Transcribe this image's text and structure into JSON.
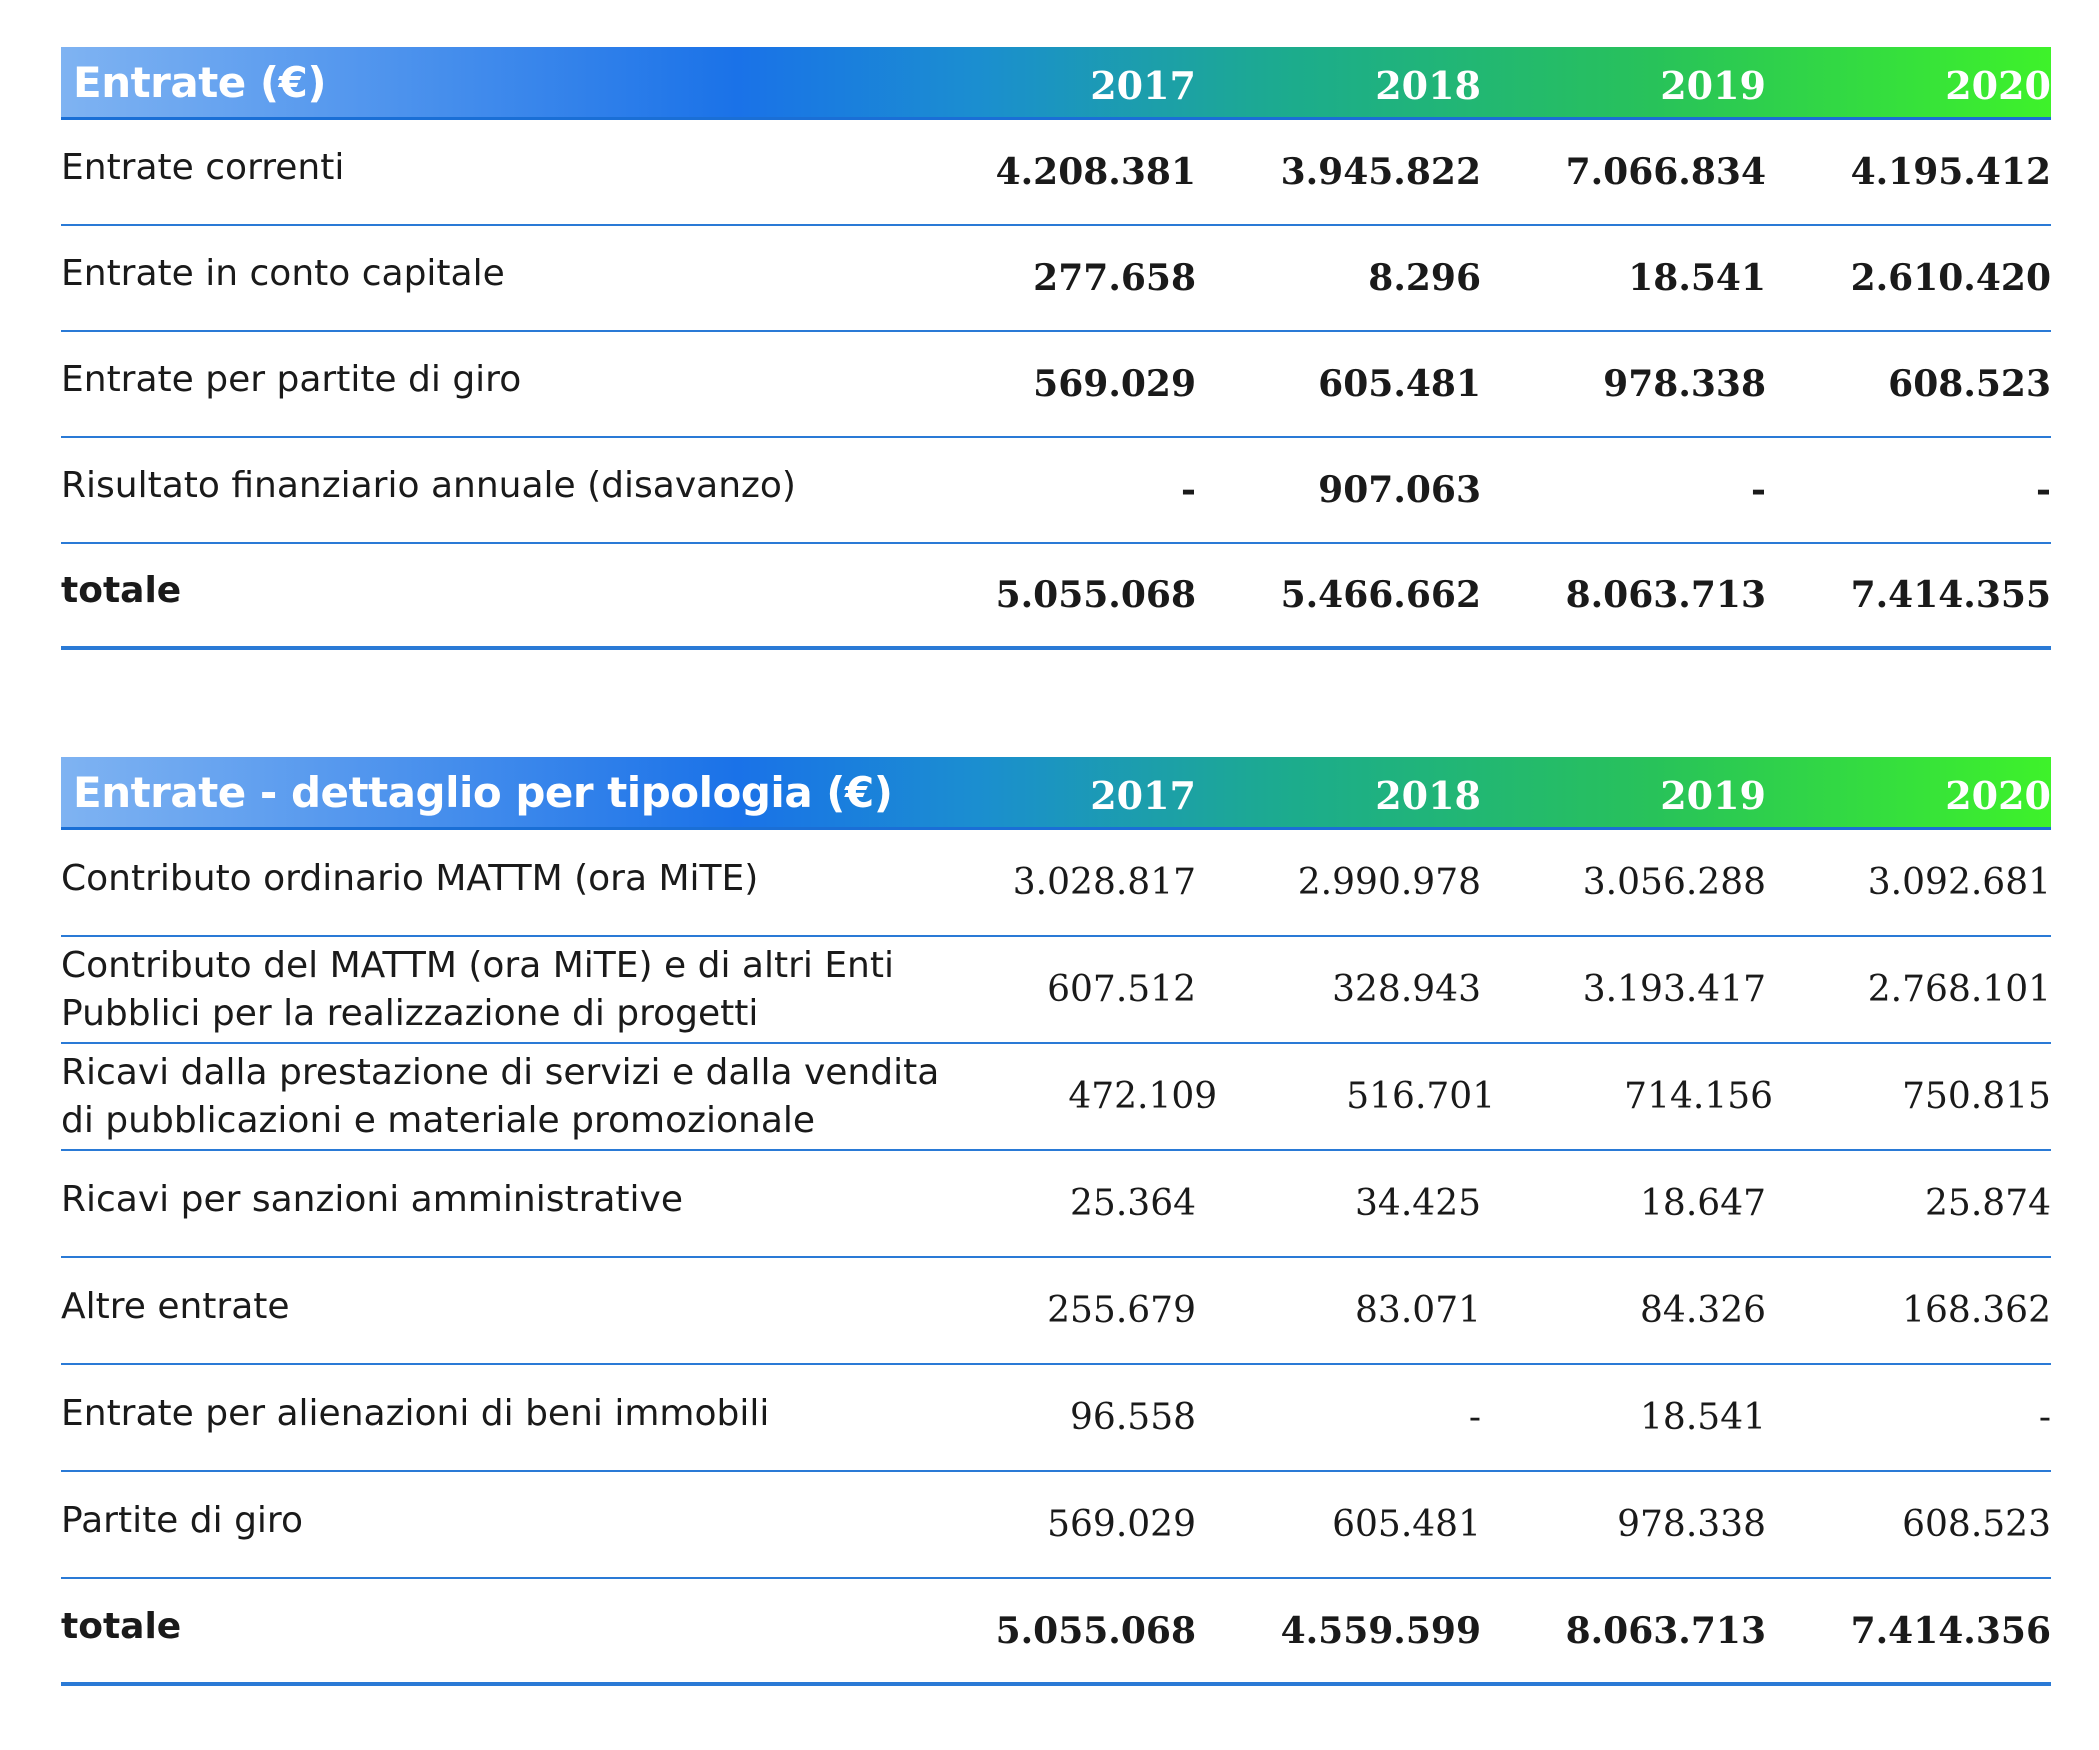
{
  "table1": {
    "title": "Entrate (€)",
    "years": [
      "2017",
      "2018",
      "2019",
      "2020"
    ],
    "rows": [
      {
        "label": "Entrate correnti",
        "values": [
          "4.208.381",
          "3.945.822",
          "7.066.834",
          "4.195.412"
        ]
      },
      {
        "label": "Entrate in conto capitale",
        "values": [
          "277.658",
          "8.296",
          "18.541",
          "2.610.420"
        ]
      },
      {
        "label": "Entrate per partite di giro",
        "values": [
          "569.029",
          "605.481",
          "978.338",
          "608.523"
        ]
      },
      {
        "label": "Risultato finanziario annuale (disavanzo)",
        "values": [
          "-",
          "907.063",
          "-",
          "-"
        ]
      }
    ],
    "total": {
      "label": "totale",
      "values": [
        "5.055.068",
        "5.466.662",
        "8.063.713",
        "7.414.355"
      ]
    }
  },
  "table2": {
    "title": "Entrate - dettaglio per tipologia (€)",
    "years": [
      "2017",
      "2018",
      "2019",
      "2020"
    ],
    "rows": [
      {
        "label": "Contributo ordinario MATTM (ora MiTE)",
        "values": [
          "3.028.817",
          "2.990.978",
          "3.056.288",
          "3.092.681"
        ]
      },
      {
        "label_line1": "Contributo del MATTM (ora MiTE) e di altri Enti",
        "label_line2": "Pubblici per la realizzazione di progetti",
        "values": [
          "607.512",
          "328.943",
          "3.193.417",
          "2.768.101"
        ]
      },
      {
        "label_line1": "Ricavi dalla prestazione di servizi e dalla vendita",
        "label_line2": "di pubblicazioni e materiale promozionale",
        "values": [
          "472.109",
          "516.701",
          "714.156",
          "750.815"
        ]
      },
      {
        "label": "Ricavi per sanzioni amministrative",
        "values": [
          "25.364",
          "34.425",
          "18.647",
          "25.874"
        ]
      },
      {
        "label": "Altre entrate",
        "values": [
          "255.679",
          "83.071",
          "84.326",
          "168.362"
        ]
      },
      {
        "label": "Entrate per alienazioni di beni immobili",
        "values": [
          "96.558",
          "-",
          "18.541",
          "-"
        ]
      },
      {
        "label": "Partite di giro",
        "values": [
          "569.029",
          "605.481",
          "978.338",
          "608.523"
        ]
      }
    ],
    "total": {
      "label": "totale",
      "values": [
        "5.055.068",
        "4.559.599",
        "8.063.713",
        "7.414.356"
      ]
    }
  }
}
